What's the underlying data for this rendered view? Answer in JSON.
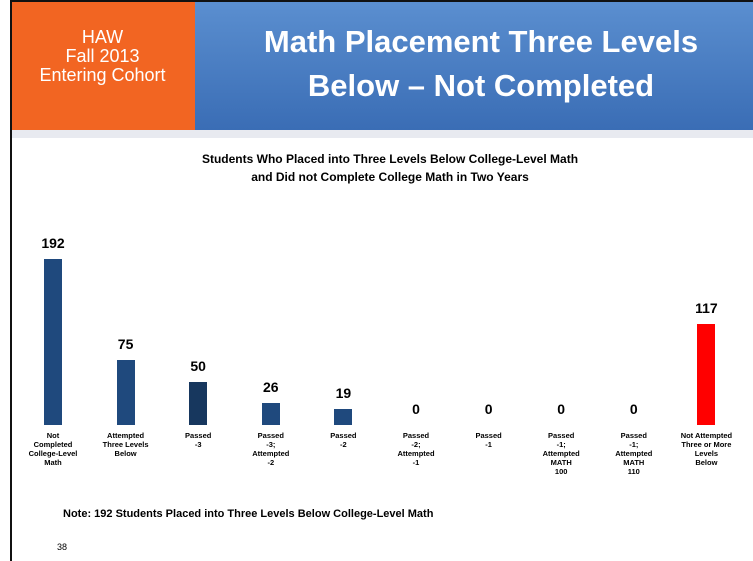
{
  "header": {
    "cohort": [
      "HAW",
      "Fall 2013",
      "Entering Cohort"
    ],
    "title": [
      "Math Placement Three Levels",
      "Below – Not Completed"
    ]
  },
  "chart_data": {
    "type": "bar",
    "title": "Students Who Placed into Three Levels Below College-Level Math\nand Did not Complete College Math in Two Years",
    "categories": [
      "Not\nCompleted\nCollege-Level\nMath",
      "Attempted\nThree Levels\nBelow",
      "Passed\n-3",
      "Passed\n-3;\nAttempted\n-2",
      "Passed\n-2",
      "Passed\n-2;\nAttempted\n-1",
      "Passed\n-1",
      "Passed\n-1;\nAttempted\nMATH\n100",
      "Passed\n-1;\nAttempted\nMATH\n110",
      "Not Attempted\nThree or More\nLevels\nBelow"
    ],
    "values": [
      192,
      75,
      50,
      26,
      19,
      0,
      0,
      0,
      0,
      117
    ],
    "colors": [
      "#1f497d",
      "#1f497d",
      "#17375e",
      "#1f497d",
      "#1f497d",
      "#1f497d",
      "#1f497d",
      "#1f497d",
      "#1f497d",
      "#ff0000"
    ],
    "annotation": "Note: 192 Students Placed into Three Levels Below College-Level Math"
  },
  "footer": {
    "page": "38"
  }
}
